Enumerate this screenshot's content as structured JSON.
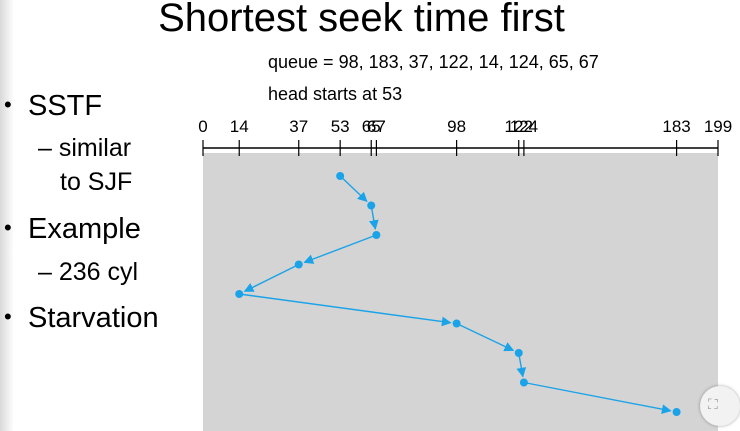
{
  "title": "Shortest seek time first",
  "caption": {
    "queue": "queue = 98, 183, 37, 122, 14, 124, 65, 67",
    "head": "head starts at 53"
  },
  "bullets": [
    {
      "label": "SSTF",
      "sub": [
        "– similar",
        "to SJF"
      ]
    },
    {
      "label": "Example",
      "sub": [
        "– 236 cyl"
      ]
    },
    {
      "label": "Starvation",
      "sub": []
    }
  ],
  "bullet_marker": "•",
  "chart_data": {
    "type": "line",
    "x_ticks": [
      "0",
      "14",
      "37",
      "53",
      "65",
      "67",
      "98",
      "122",
      "124",
      "183",
      "199"
    ],
    "xlim": [
      0,
      199
    ],
    "sequence": [
      53,
      65,
      67,
      37,
      14,
      98,
      122,
      124,
      183
    ],
    "colors": {
      "path": "#1aa3e8",
      "panel": "#d4d4d4",
      "axis": "#000000"
    }
  },
  "corner_icon": "fit-icon"
}
